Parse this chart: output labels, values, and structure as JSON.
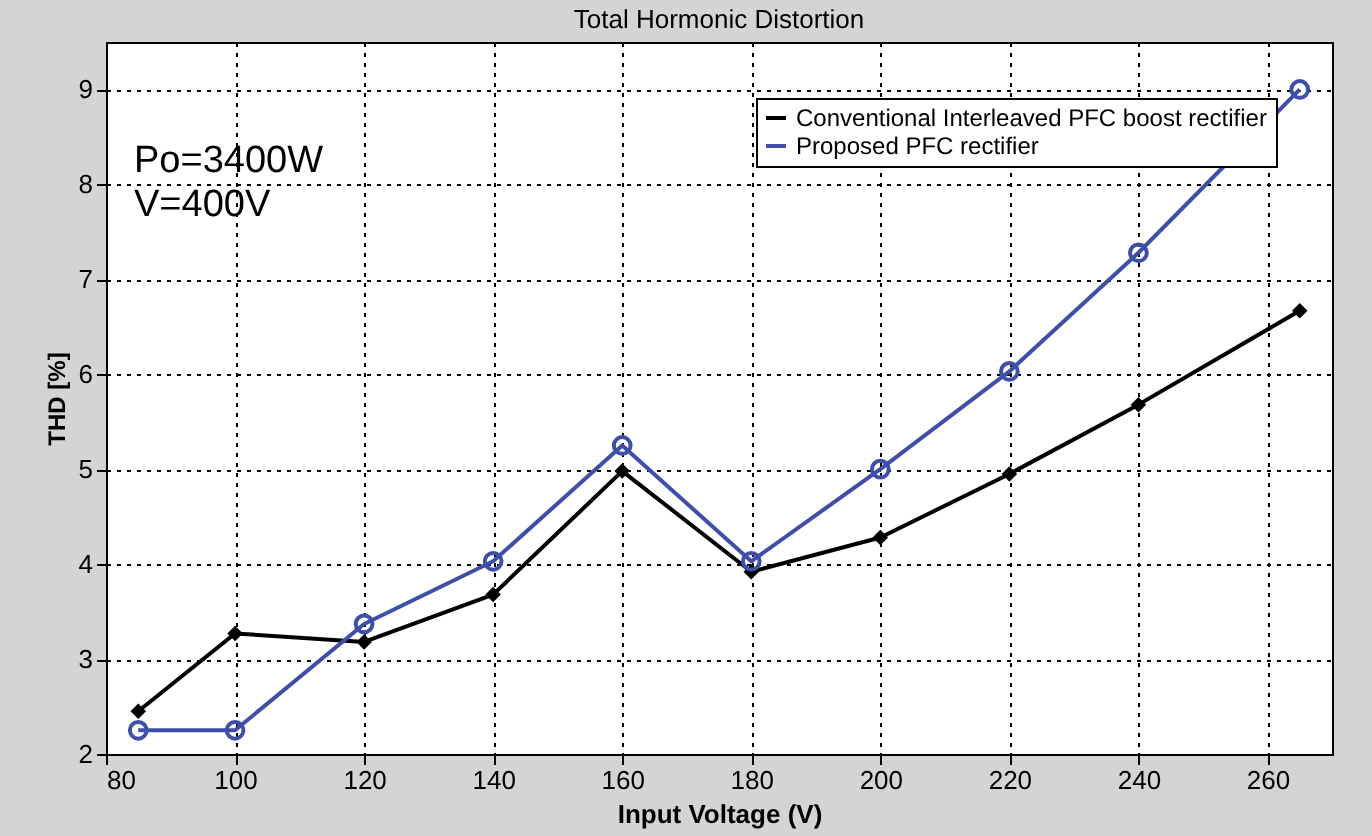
{
  "chart_data": {
    "type": "line",
    "title": "Total Hormonic Distortion",
    "xlabel": "Input Voltage (V)",
    "ylabel": "THD [%]",
    "x": [
      85,
      100,
      120,
      140,
      160,
      180,
      200,
      220,
      240,
      265
    ],
    "series": [
      {
        "name": "Conventional Interleaved PFC boost rectifier",
        "color": "#000000",
        "marker": "diamond",
        "values": [
          2.45,
          3.27,
          3.18,
          3.68,
          4.98,
          3.92,
          4.28,
          4.95,
          5.68,
          6.67
        ]
      },
      {
        "name": "Proposed PFC rectifier",
        "color": "#3f4fa8",
        "marker": "circle",
        "values": [
          2.25,
          2.25,
          3.37,
          4.03,
          5.25,
          4.03,
          5.0,
          6.03,
          7.28,
          9.0
        ]
      }
    ],
    "xlim": [
      80,
      270
    ],
    "xticks": [
      80,
      100,
      120,
      140,
      160,
      180,
      200,
      220,
      240,
      260
    ],
    "ylim": [
      2,
      9.5
    ],
    "yticks": [
      2,
      3,
      4,
      5,
      6,
      7,
      8,
      9
    ],
    "grid": true,
    "legend": "top right",
    "line_style": "solid",
    "annotations": [
      "Po=3400W",
      "V=400V"
    ]
  }
}
